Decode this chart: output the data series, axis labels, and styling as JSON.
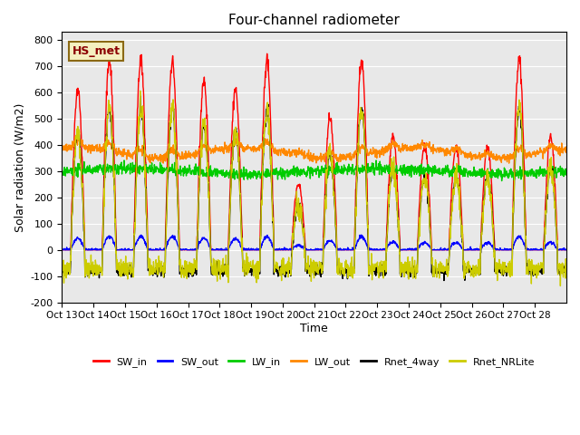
{
  "title": "Four-channel radiometer",
  "xlabel": "Time",
  "ylabel": "Solar radiation (W/m2)",
  "station_label": "HS_met",
  "ylim": [
    -200,
    830
  ],
  "yticks": [
    -200,
    -100,
    0,
    100,
    200,
    300,
    400,
    500,
    600,
    700,
    800
  ],
  "x_tick_labels": [
    "Oct 13",
    "Oct 14",
    "Oct 15",
    "Oct 16",
    "Oct 17",
    "Oct 18",
    "Oct 19",
    "Oct 20",
    "Oct 21",
    "Oct 22",
    "Oct 23",
    "Oct 24",
    "Oct 25",
    "Oct 26",
    "Oct 27",
    "Oct 28"
  ],
  "bg_color": "#e8e8e8",
  "fig_color": "#ffffff",
  "legend_entries": [
    "SW_in",
    "SW_out",
    "LW_in",
    "LW_out",
    "Rnet_4way",
    "Rnet_NRLite"
  ],
  "legend_colors": [
    "#ff0000",
    "#0000ff",
    "#00cc00",
    "#ff8800",
    "#000000",
    "#cccc00"
  ],
  "line_width": 1.0,
  "n_days": 16,
  "n_points": 1600
}
